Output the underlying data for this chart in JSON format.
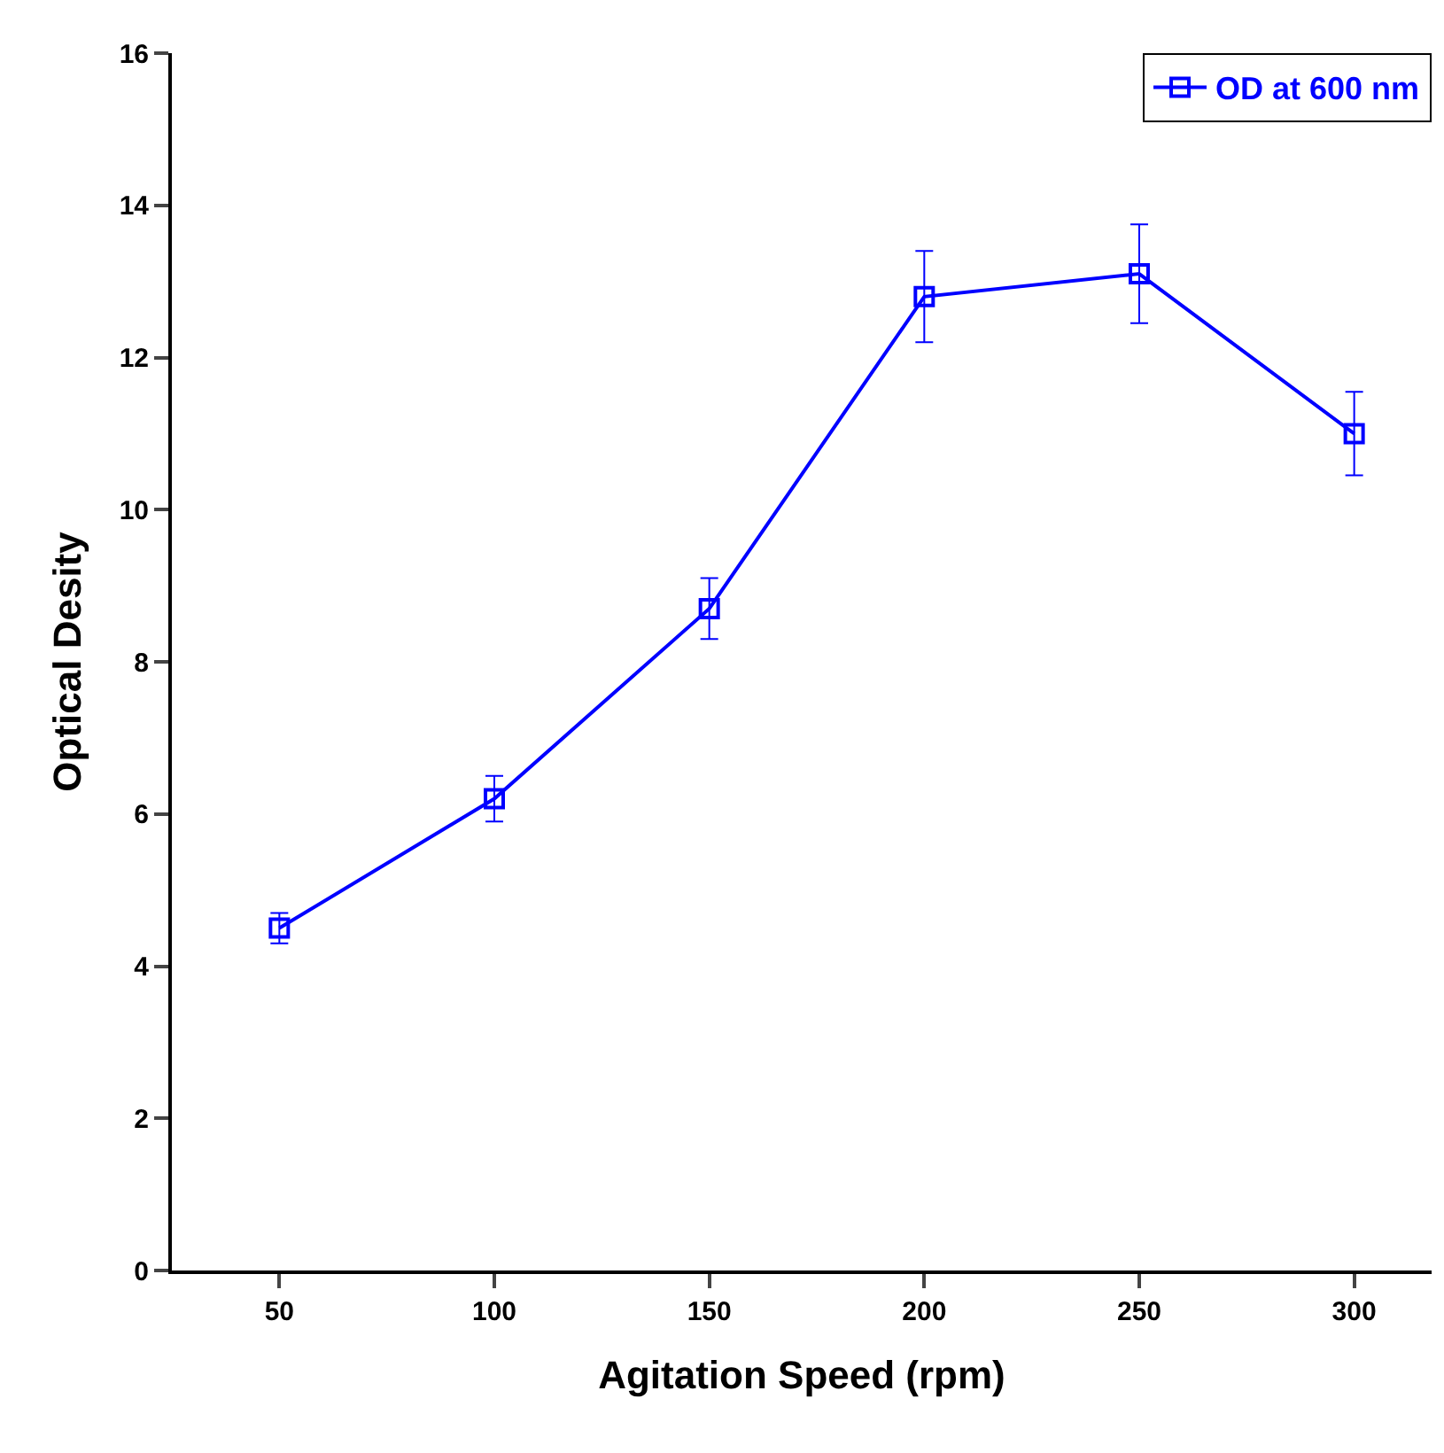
{
  "chart_data": {
    "type": "line",
    "xlabel": "Agitation Speed (rpm)",
    "ylabel": "Optical Desity",
    "x": [
      50,
      100,
      150,
      200,
      250,
      300
    ],
    "series": [
      {
        "name": "OD at 600 nm",
        "color": "#0000ff",
        "values": [
          4.5,
          6.2,
          8.7,
          12.8,
          13.1,
          11.0
        ],
        "errors": [
          0.2,
          0.3,
          0.4,
          0.6,
          0.65,
          0.55
        ]
      }
    ],
    "xlim": [
      25,
      318
    ],
    "xticks": [
      50,
      100,
      150,
      200,
      250,
      300
    ],
    "ylim": [
      0,
      16
    ],
    "yticks": [
      0,
      2,
      4,
      6,
      8,
      10,
      12,
      14,
      16
    ],
    "grid": false,
    "legend": "top right",
    "marker": "square",
    "line_style": "solid"
  }
}
